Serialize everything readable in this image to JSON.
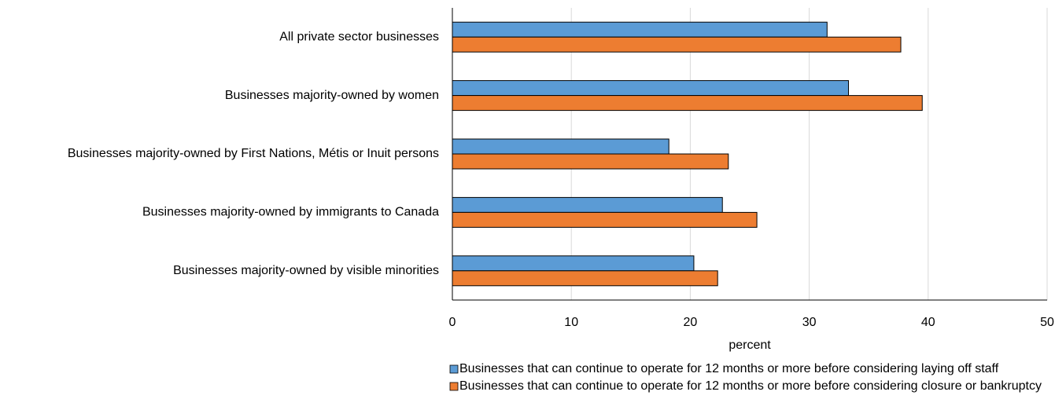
{
  "chart_data": {
    "type": "barh",
    "categories": [
      "All private sector businesses",
      "Businesses majority-owned by women",
      "Businesses majority-owned by First Nations, Métis or Inuit persons",
      "Businesses majority-owned by immigrants to Canada",
      "Businesses majority-owned by visible minorities"
    ],
    "series": [
      {
        "name": "Businesses that can continue to operate for 12 months or more before considering laying off staff",
        "color": "#5b9bd5",
        "values": [
          31.5,
          33.3,
          18.2,
          22.7,
          20.3
        ]
      },
      {
        "name": "Businesses that can continue to operate for 12 months or more before considering closure or bankruptcy",
        "color": "#ed7d31",
        "values": [
          37.7,
          39.5,
          23.2,
          25.6,
          22.3
        ]
      }
    ],
    "xlabel": "percent",
    "xlim": [
      0,
      50
    ],
    "xticks": [
      0,
      10,
      20,
      30,
      40,
      50
    ],
    "grid": true,
    "legend": "bottom"
  }
}
